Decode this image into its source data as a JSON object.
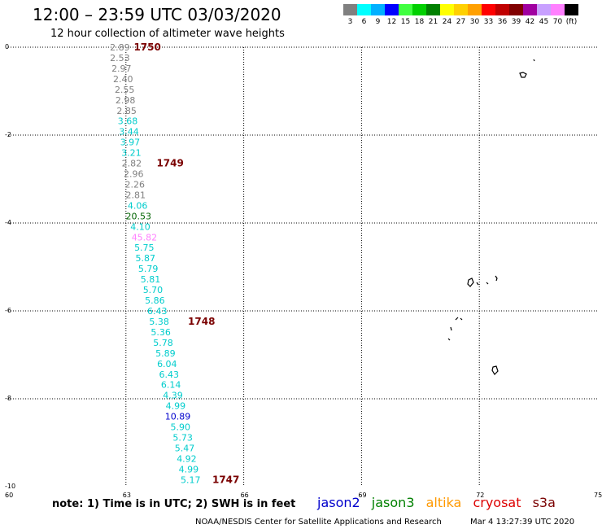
{
  "header": {
    "title": "12:00 – 23:59 UTC 03/03/2020",
    "subtitle": "12 hour collection of altimeter wave heights"
  },
  "legend": {
    "colors": [
      "#808080",
      "#00ffff",
      "#00b0ff",
      "#0000ff",
      "#40ff40",
      "#00d000",
      "#008000",
      "#ffff00",
      "#ffd000",
      "#ffa000",
      "#ff0000",
      "#c00000",
      "#800000",
      "#a000a0",
      "#c8a0ff",
      "#ff80ff",
      "#000000"
    ],
    "labels": [
      "3",
      "6",
      "9",
      "12",
      "15",
      "18",
      "21",
      "24",
      "27",
      "30",
      "33",
      "36",
      "39",
      "42",
      "45",
      "70",
      "(ft)"
    ]
  },
  "axes": {
    "lat_labels": [
      "0",
      "-2",
      "-4",
      "-6",
      "-8",
      "-10"
    ],
    "lon_labels": [
      "60",
      "63",
      "66",
      "69",
      "72",
      "75"
    ]
  },
  "track": {
    "orbits": [
      "1750",
      "1749",
      "1748",
      "1747"
    ],
    "points": [
      {
        "text": "2.89",
        "lat": 0.0,
        "lon": 62.8,
        "color": "#808080"
      },
      {
        "text": "2.53",
        "lat": -0.24,
        "lon": 62.8,
        "color": "#808080"
      },
      {
        "text": "2.97",
        "lat": -0.48,
        "lon": 62.84,
        "color": "#808080"
      },
      {
        "text": "2.40",
        "lat": -0.72,
        "lon": 62.88,
        "color": "#808080"
      },
      {
        "text": "2.55",
        "lat": -0.96,
        "lon": 62.92,
        "color": "#808080"
      },
      {
        "text": "2.98",
        "lat": -1.2,
        "lon": 62.94,
        "color": "#808080"
      },
      {
        "text": "2.85",
        "lat": -1.44,
        "lon": 62.97,
        "color": "#808080"
      },
      {
        "text": "3.68",
        "lat": -1.68,
        "lon": 63.0,
        "color": "#00cccc"
      },
      {
        "text": "3.44",
        "lat": -1.92,
        "lon": 63.03,
        "color": "#00cccc"
      },
      {
        "text": "3.97",
        "lat": -2.16,
        "lon": 63.06,
        "color": "#00cccc"
      },
      {
        "text": "3.21",
        "lat": -2.4,
        "lon": 63.09,
        "color": "#00cccc"
      },
      {
        "text": "2.82",
        "lat": -2.64,
        "lon": 63.1,
        "color": "#808080"
      },
      {
        "text": "2.96",
        "lat": -2.88,
        "lon": 63.15,
        "color": "#808080"
      },
      {
        "text": "2.26",
        "lat": -3.12,
        "lon": 63.18,
        "color": "#808080"
      },
      {
        "text": "2.81",
        "lat": -3.36,
        "lon": 63.2,
        "color": "#808080"
      },
      {
        "text": "4.06",
        "lat": -3.6,
        "lon": 63.25,
        "color": "#00cccc"
      },
      {
        "text": "20.53",
        "lat": -3.84,
        "lon": 63.2,
        "color": "#006400"
      },
      {
        "text": "4.10",
        "lat": -4.08,
        "lon": 63.32,
        "color": "#00cccc"
      },
      {
        "text": "45.82",
        "lat": -4.32,
        "lon": 63.35,
        "color": "#ff80ff"
      },
      {
        "text": "5.75",
        "lat": -4.56,
        "lon": 63.42,
        "color": "#00cccc"
      },
      {
        "text": "5.87",
        "lat": -4.8,
        "lon": 63.45,
        "color": "#00cccc"
      },
      {
        "text": "5.79",
        "lat": -5.04,
        "lon": 63.52,
        "color": "#00cccc"
      },
      {
        "text": "5.81",
        "lat": -5.28,
        "lon": 63.58,
        "color": "#00cccc"
      },
      {
        "text": "5.70",
        "lat": -5.52,
        "lon": 63.64,
        "color": "#00cccc"
      },
      {
        "text": "5.86",
        "lat": -5.76,
        "lon": 63.69,
        "color": "#00cccc"
      },
      {
        "text": "6.43",
        "lat": -6.0,
        "lon": 63.75,
        "color": "#00cccc"
      },
      {
        "text": "5.38",
        "lat": -6.24,
        "lon": 63.8,
        "color": "#00cccc"
      },
      {
        "text": "5.36",
        "lat": -6.48,
        "lon": 63.84,
        "color": "#00cccc"
      },
      {
        "text": "5.78",
        "lat": -6.72,
        "lon": 63.9,
        "color": "#00cccc"
      },
      {
        "text": "5.89",
        "lat": -6.96,
        "lon": 63.96,
        "color": "#00cccc"
      },
      {
        "text": "6.04",
        "lat": -7.2,
        "lon": 64.0,
        "color": "#00cccc"
      },
      {
        "text": "6.43",
        "lat": -7.44,
        "lon": 64.05,
        "color": "#00cccc"
      },
      {
        "text": "6.14",
        "lat": -7.68,
        "lon": 64.1,
        "color": "#00cccc"
      },
      {
        "text": "4.39",
        "lat": -7.92,
        "lon": 64.15,
        "color": "#00cccc"
      },
      {
        "text": "4.99",
        "lat": -8.16,
        "lon": 64.22,
        "color": "#00cccc"
      },
      {
        "text": "10.89",
        "lat": -8.4,
        "lon": 64.2,
        "color": "#0000cc"
      },
      {
        "text": "5.90",
        "lat": -8.64,
        "lon": 64.34,
        "color": "#00cccc"
      },
      {
        "text": "5.73",
        "lat": -8.88,
        "lon": 64.4,
        "color": "#00cccc"
      },
      {
        "text": "5.47",
        "lat": -9.12,
        "lon": 64.45,
        "color": "#00cccc"
      },
      {
        "text": "4.92",
        "lat": -9.36,
        "lon": 64.5,
        "color": "#00cccc"
      },
      {
        "text": "4.99",
        "lat": -9.6,
        "lon": 64.55,
        "color": "#00cccc"
      },
      {
        "text": "5.17",
        "lat": -9.84,
        "lon": 64.6,
        "color": "#00cccc"
      }
    ],
    "orbit_positions": [
      {
        "label": "1750",
        "lat": 0.0,
        "lon": 63.2
      },
      {
        "label": "1749",
        "lat": -2.64,
        "lon": 63.78
      },
      {
        "label": "1748",
        "lat": -6.24,
        "lon": 64.58
      },
      {
        "label": "1747",
        "lat": -9.84,
        "lon": 65.2
      }
    ]
  },
  "footer": {
    "note": "note: 1) Time is in UTC; 2) SWH is in feet",
    "satellites": [
      {
        "name": "jason2",
        "color": "#0000cc"
      },
      {
        "name": "jason3",
        "color": "#008000"
      },
      {
        "name": "altika",
        "color": "#ff9900"
      },
      {
        "name": "cryosat",
        "color": "#dd0000"
      },
      {
        "name": "s3a",
        "color": "#7a0000"
      }
    ],
    "credit": "NOAA/NESDIS Center for Satellite Applications and Research",
    "timestamp": "Mar  4 13:27:39 UTC 2020"
  }
}
